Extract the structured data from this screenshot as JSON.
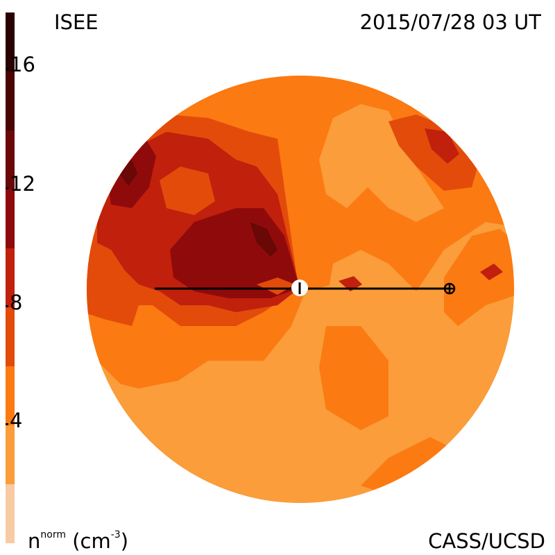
{
  "header": {
    "title_left": "ISEE",
    "title_right": "2015/07/28 03 UT"
  },
  "footer": {
    "unit_base": "n",
    "unit_sup": "norm",
    "unit_rest": "(cm",
    "unit_exp": "-3",
    "unit_close": ")",
    "credit": "CASS/UCSD"
  },
  "colorbar": {
    "ticks": [
      "16",
      "12",
      "8",
      "4"
    ],
    "levels": [
      {
        "min": 0,
        "max": 2,
        "color": "#f8cba3"
      },
      {
        "min": 2,
        "max": 4,
        "color": "#fa9d3a"
      },
      {
        "min": 4,
        "max": 6,
        "color": "#fb7a12"
      },
      {
        "min": 6,
        "max": 8,
        "color": "#e34b0b"
      },
      {
        "min": 8,
        "max": 10,
        "color": "#c1200c"
      },
      {
        "min": 10,
        "max": 12,
        "color": "#8f0b0b"
      },
      {
        "min": 12,
        "max": 14,
        "color": "#6a0707"
      },
      {
        "min": 14,
        "max": 16,
        "color": "#4a0404"
      },
      {
        "min": 16,
        "max": 18,
        "color": "#2a0101"
      }
    ],
    "range": [
      0,
      18
    ]
  },
  "map": {
    "background_color": "#fa9d3a",
    "line_color": "#000000"
  }
}
